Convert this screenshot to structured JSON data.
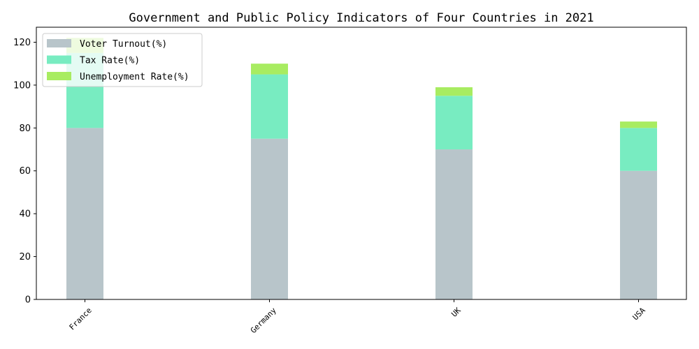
{
  "chart_data": {
    "type": "bar",
    "stacked": true,
    "title": "Government and Public Policy Indicators of Four Countries in 2021",
    "xlabel": "",
    "ylabel": "",
    "categories": [
      "France",
      "Germany",
      "UK",
      "USA"
    ],
    "series": [
      {
        "name": "Voter Turnout(%)",
        "values": [
          80,
          75,
          70,
          60
        ],
        "color": "#b8c5ca"
      },
      {
        "name": "Tax Rate(%)",
        "values": [
          35,
          30,
          25,
          20
        ],
        "color": "#78ecc1"
      },
      {
        "name": "Unemployment Rate(%)",
        "values": [
          7,
          5,
          4,
          3
        ],
        "color": "#a8ec61"
      }
    ],
    "ylim": [
      0,
      127
    ],
    "yticks": [
      0,
      20,
      40,
      60,
      80,
      100,
      120
    ],
    "grid": false,
    "legend_position": "top-left",
    "xtick_rotation": 45
  }
}
